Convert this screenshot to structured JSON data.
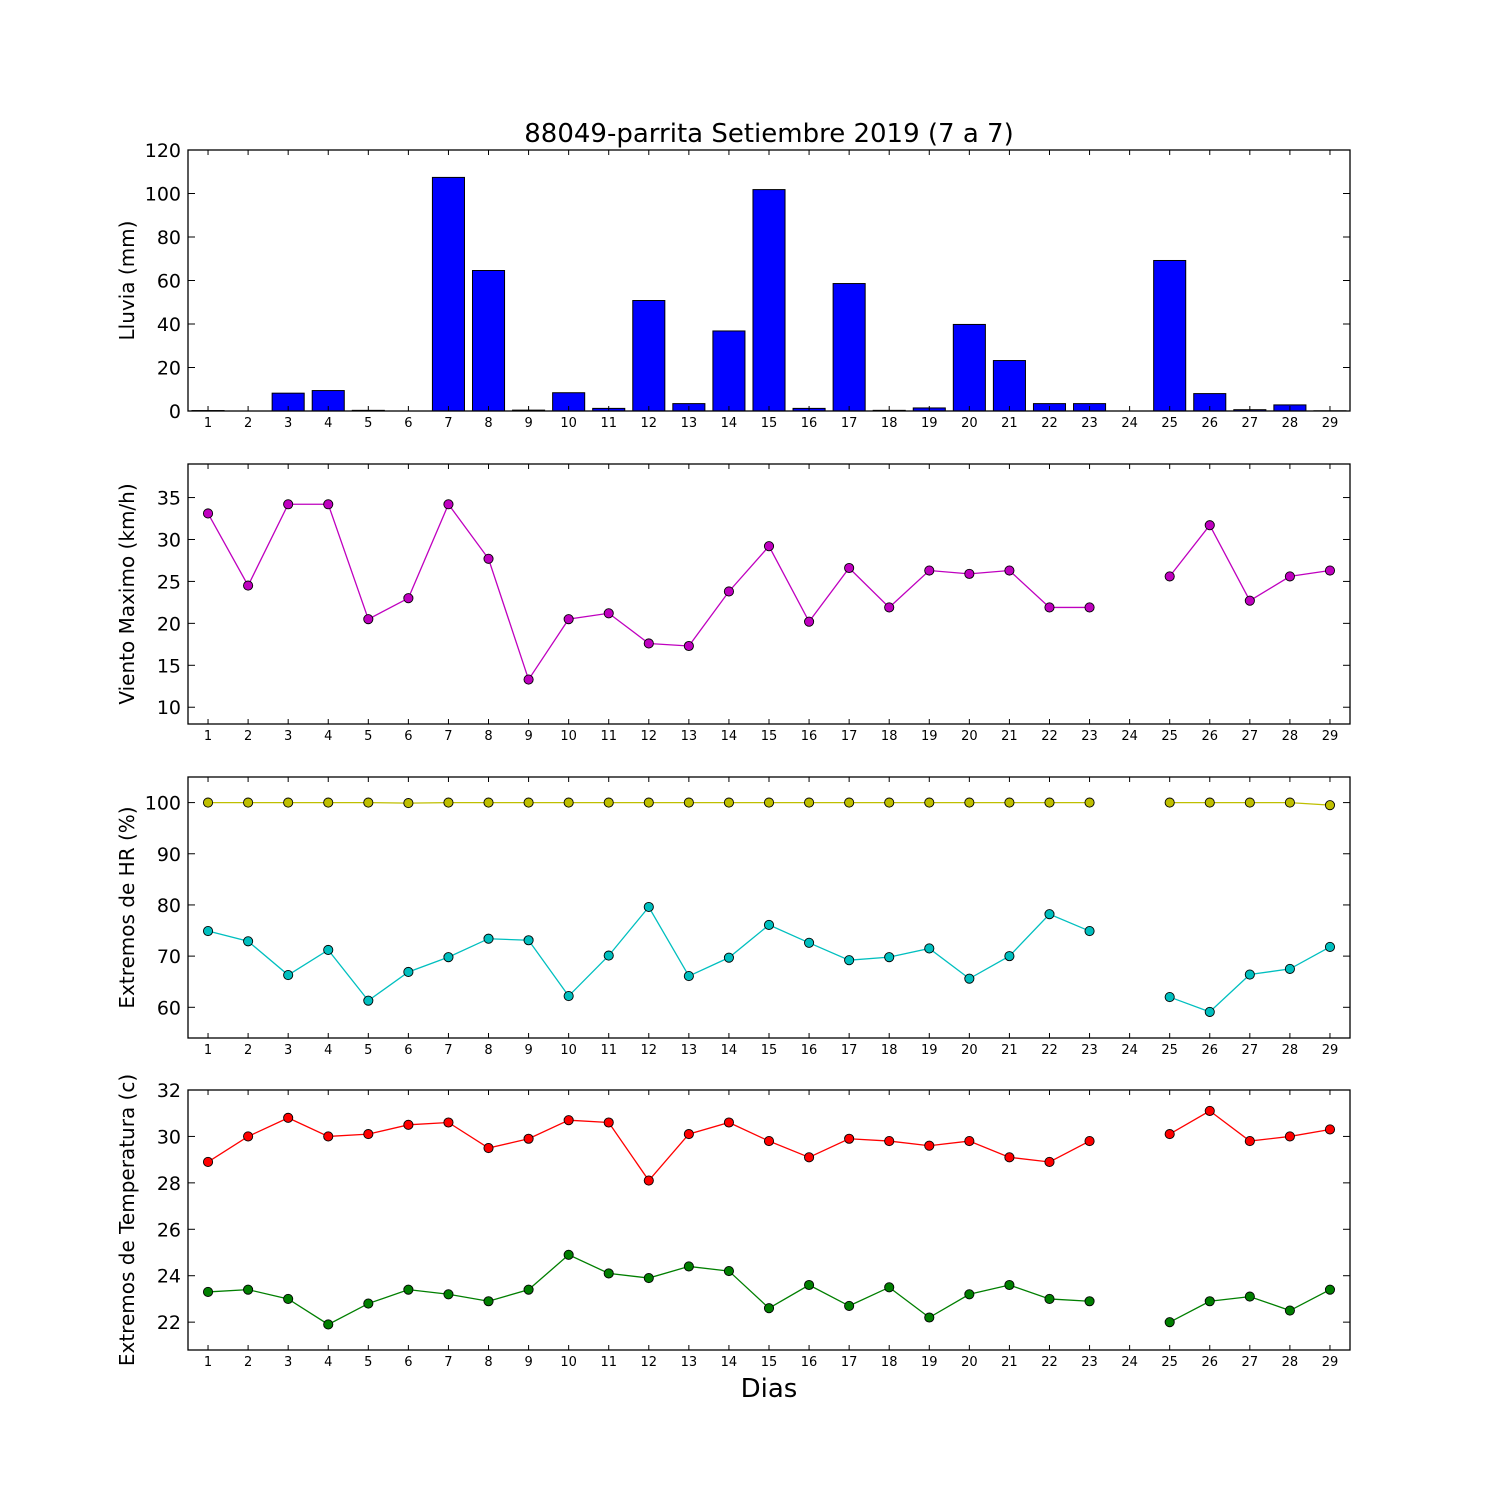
{
  "chart_data": [
    {
      "type": "bar",
      "title": "88049-parrita Setiembre 2019  (7 a 7)",
      "ylabel": "Lluvia (mm)",
      "xlabel": "",
      "ylim": [
        0,
        120
      ],
      "yticks": [
        0,
        20,
        40,
        60,
        80,
        100,
        120
      ],
      "color": "#0000ff",
      "categories": [
        "1",
        "2",
        "3",
        "4",
        "5",
        "6",
        "7",
        "8",
        "9",
        "10",
        "11",
        "12",
        "13",
        "14",
        "15",
        "16",
        "17",
        "18",
        "19",
        "20",
        "21",
        "22",
        "23",
        "24",
        "25",
        "26",
        "27",
        "28",
        "29"
      ],
      "values": [
        0.2,
        0,
        8.2,
        9.4,
        0.3,
        0,
        107.4,
        64.6,
        0.4,
        8.4,
        1.2,
        50.8,
        3.4,
        36.8,
        101.8,
        1.2,
        58.6,
        0.3,
        1.4,
        39.8,
        23.2,
        3.4,
        3.4,
        0,
        69.2,
        8.0,
        0.6,
        2.8,
        0.1
      ]
    },
    {
      "type": "line",
      "title": "",
      "ylabel": "Viento Maximo (km/h)",
      "xlabel": "",
      "ylim": [
        8,
        39
      ],
      "yticks": [
        10,
        15,
        20,
        25,
        30,
        35
      ],
      "x": [
        "1",
        "2",
        "3",
        "4",
        "5",
        "6",
        "7",
        "8",
        "9",
        "10",
        "11",
        "12",
        "13",
        "14",
        "15",
        "16",
        "17",
        "18",
        "19",
        "20",
        "21",
        "22",
        "23",
        "24",
        "25",
        "26",
        "27",
        "28",
        "29"
      ],
      "series": [
        {
          "color": "#bf00bf",
          "values": [
            33.1,
            24.5,
            34.2,
            34.2,
            20.5,
            23.0,
            34.2,
            27.7,
            13.3,
            20.5,
            21.2,
            17.6,
            17.3,
            23.8,
            29.2,
            20.2,
            26.6,
            21.9,
            26.3,
            25.9,
            26.3,
            21.9,
            21.9,
            null,
            25.6,
            31.7,
            22.7,
            25.6,
            26.3
          ]
        }
      ]
    },
    {
      "type": "line",
      "title": "",
      "ylabel": "Extremos de HR (%)",
      "xlabel": "",
      "ylim": [
        54,
        105
      ],
      "yticks": [
        60,
        70,
        80,
        90,
        100
      ],
      "x": [
        "1",
        "2",
        "3",
        "4",
        "5",
        "6",
        "7",
        "8",
        "9",
        "10",
        "11",
        "12",
        "13",
        "14",
        "15",
        "16",
        "17",
        "18",
        "19",
        "20",
        "21",
        "22",
        "23",
        "24",
        "25",
        "26",
        "27",
        "28",
        "29"
      ],
      "series": [
        {
          "color": "#bfbf00",
          "values": [
            100,
            100,
            100,
            100,
            100,
            99.9,
            100,
            100,
            100,
            100,
            100,
            100,
            100,
            100,
            100,
            100,
            100,
            100,
            100,
            100,
            100,
            100,
            100,
            null,
            100,
            100,
            100,
            100,
            99.5
          ]
        },
        {
          "color": "#00bfbf",
          "values": [
            74.9,
            72.9,
            66.3,
            71.2,
            61.3,
            66.9,
            69.8,
            73.4,
            73.1,
            62.2,
            70.1,
            79.6,
            66.1,
            69.7,
            76.1,
            72.6,
            69.2,
            69.8,
            71.5,
            65.6,
            70.0,
            78.2,
            74.9,
            null,
            62.0,
            59.1,
            66.4,
            67.5,
            71.8
          ]
        }
      ]
    },
    {
      "type": "line",
      "title": "",
      "ylabel": "Extremos de Temperatura (c)",
      "xlabel": "Dias",
      "ylim": [
        20.8,
        32
      ],
      "yticks": [
        22,
        24,
        26,
        28,
        30,
        32
      ],
      "x": [
        "1",
        "2",
        "3",
        "4",
        "5",
        "6",
        "7",
        "8",
        "9",
        "10",
        "11",
        "12",
        "13",
        "14",
        "15",
        "16",
        "17",
        "18",
        "19",
        "20",
        "21",
        "22",
        "23",
        "24",
        "25",
        "26",
        "27",
        "28",
        "29"
      ],
      "series": [
        {
          "color": "#ff0000",
          "values": [
            28.9,
            30.0,
            30.8,
            30.0,
            30.1,
            30.5,
            30.6,
            29.5,
            29.9,
            30.7,
            30.6,
            28.1,
            30.1,
            30.6,
            29.8,
            29.1,
            29.9,
            29.8,
            29.6,
            29.8,
            29.1,
            28.9,
            29.8,
            null,
            30.1,
            31.1,
            29.8,
            30.0,
            30.3
          ]
        },
        {
          "color": "#007f00",
          "values": [
            23.3,
            23.4,
            23.0,
            21.9,
            22.8,
            23.4,
            23.2,
            22.9,
            23.4,
            24.9,
            24.1,
            23.9,
            24.4,
            24.2,
            22.6,
            23.6,
            22.7,
            23.5,
            22.2,
            23.2,
            23.6,
            23.0,
            22.9,
            null,
            22.0,
            22.9,
            23.1,
            22.5,
            23.4
          ]
        }
      ]
    }
  ]
}
